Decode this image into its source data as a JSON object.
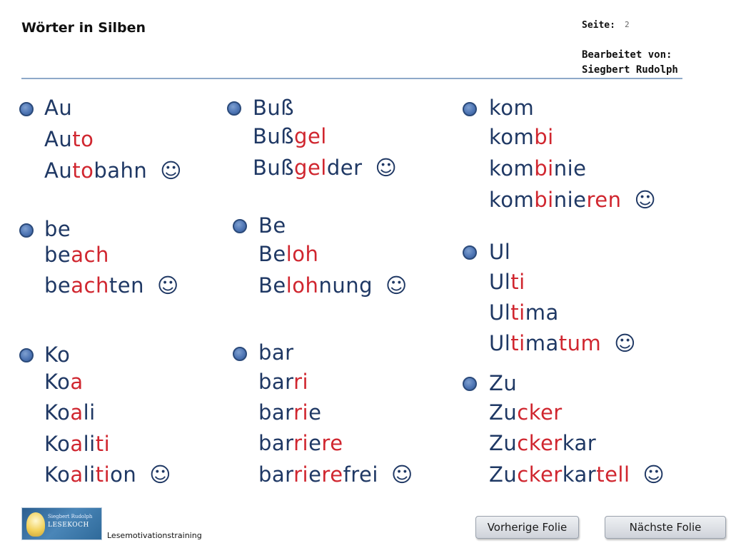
{
  "header": {
    "title": "Wörter in Silben",
    "page_label": "Seite:",
    "page_number": "2",
    "edited_by_label": "Bearbeitet von:",
    "edited_by_name": "Siegbert Rudolph"
  },
  "colors": {
    "text": "#1f3864",
    "accent": "#d0262f",
    "bullet": "#4f76b5"
  },
  "groups": [
    {
      "id": "au",
      "words": [
        {
          "parts": [
            [
              "Au",
              false
            ]
          ]
        },
        {
          "parts": [
            [
              "Au",
              false
            ],
            [
              "to",
              true
            ]
          ]
        },
        {
          "parts": [
            [
              "Au",
              false
            ],
            [
              "to",
              true
            ],
            [
              "bahn",
              false
            ]
          ],
          "smiley": "☺"
        }
      ]
    },
    {
      "id": "buss",
      "words": [
        {
          "parts": [
            [
              "Buß",
              false
            ]
          ]
        },
        {
          "parts": [
            [
              "Buß",
              false
            ],
            [
              "gel",
              true
            ]
          ]
        },
        {
          "parts": [
            [
              "Buß",
              false
            ],
            [
              "gel",
              true
            ],
            [
              "der",
              false
            ]
          ],
          "smiley": "☺"
        }
      ]
    },
    {
      "id": "kom",
      "words": [
        {
          "parts": [
            [
              "kom",
              false
            ]
          ]
        },
        {
          "parts": [
            [
              "kom",
              false
            ],
            [
              "bi",
              true
            ]
          ]
        },
        {
          "parts": [
            [
              "kom",
              false
            ],
            [
              "bi",
              true
            ],
            [
              "nie",
              false
            ]
          ]
        },
        {
          "parts": [
            [
              "kom",
              false
            ],
            [
              "bi",
              true
            ],
            [
              "nie",
              false
            ],
            [
              "ren",
              true
            ]
          ],
          "smiley": "☺"
        }
      ]
    },
    {
      "id": "be",
      "words": [
        {
          "parts": [
            [
              "be",
              false
            ]
          ]
        },
        {
          "parts": [
            [
              "be",
              false
            ],
            [
              "ach",
              true
            ]
          ]
        },
        {
          "parts": [
            [
              "be",
              false
            ],
            [
              "ach",
              true
            ],
            [
              "ten",
              false
            ]
          ],
          "smiley": "☺"
        }
      ]
    },
    {
      "id": "be2",
      "words": [
        {
          "parts": [
            [
              "Be",
              false
            ]
          ]
        },
        {
          "parts": [
            [
              "Be",
              false
            ],
            [
              "loh",
              true
            ]
          ]
        },
        {
          "parts": [
            [
              "Be",
              false
            ],
            [
              "loh",
              true
            ],
            [
              "nung",
              false
            ]
          ],
          "smiley": "☺"
        }
      ]
    },
    {
      "id": "ul",
      "words": [
        {
          "parts": [
            [
              "Ul",
              false
            ]
          ]
        },
        {
          "parts": [
            [
              "Ul",
              false
            ],
            [
              "ti",
              true
            ]
          ]
        },
        {
          "parts": [
            [
              "Ul",
              false
            ],
            [
              "ti",
              true
            ],
            [
              "ma",
              false
            ]
          ]
        },
        {
          "parts": [
            [
              "Ul",
              false
            ],
            [
              "ti",
              true
            ],
            [
              "ma",
              false
            ],
            [
              "tum",
              true
            ]
          ],
          "smiley": "☺"
        }
      ]
    },
    {
      "id": "ko",
      "words": [
        {
          "parts": [
            [
              "Ko",
              false
            ]
          ]
        },
        {
          "parts": [
            [
              "Ko",
              false
            ],
            [
              "a",
              true
            ]
          ]
        },
        {
          "parts": [
            [
              "Ko",
              false
            ],
            [
              "a",
              true
            ],
            [
              "li",
              false
            ]
          ]
        },
        {
          "parts": [
            [
              "Ko",
              false
            ],
            [
              "a",
              true
            ],
            [
              "li",
              false
            ],
            [
              "ti",
              true
            ]
          ]
        },
        {
          "parts": [
            [
              "Ko",
              false
            ],
            [
              "a",
              true
            ],
            [
              "li",
              false
            ],
            [
              "ti",
              true
            ],
            [
              "on",
              false
            ]
          ],
          "smiley": "☺"
        }
      ]
    },
    {
      "id": "bar",
      "words": [
        {
          "parts": [
            [
              "bar",
              false
            ]
          ]
        },
        {
          "parts": [
            [
              "bar",
              false
            ],
            [
              "ri",
              true
            ]
          ]
        },
        {
          "parts": [
            [
              "bar",
              false
            ],
            [
              "ri",
              true
            ],
            [
              "e",
              false
            ]
          ]
        },
        {
          "parts": [
            [
              "bar",
              false
            ],
            [
              "ri",
              true
            ],
            [
              "e",
              false
            ],
            [
              "re",
              true
            ]
          ]
        },
        {
          "parts": [
            [
              "bar",
              false
            ],
            [
              "ri",
              true
            ],
            [
              "e",
              false
            ],
            [
              "re",
              true
            ],
            [
              "frei",
              false
            ]
          ],
          "smiley": "☺"
        }
      ]
    },
    {
      "id": "zu",
      "words": [
        {
          "parts": [
            [
              "Zu",
              false
            ]
          ]
        },
        {
          "parts": [
            [
              "Zu",
              false
            ],
            [
              "cker",
              true
            ]
          ]
        },
        {
          "parts": [
            [
              "Zu",
              false
            ],
            [
              "cker",
              true
            ],
            [
              "kar",
              false
            ]
          ]
        },
        {
          "parts": [
            [
              "Zu",
              false
            ],
            [
              "cker",
              true
            ],
            [
              "kar",
              false
            ],
            [
              "tell",
              true
            ]
          ],
          "smiley": "☺"
        }
      ]
    }
  ],
  "footer": {
    "logo_line1": "Siegbert Rudolph",
    "logo_line2": "LESEKOCH",
    "label": "Lesemotivationstraining",
    "prev_button": "Vorherige Folie",
    "next_button": "Nächste Folie"
  }
}
